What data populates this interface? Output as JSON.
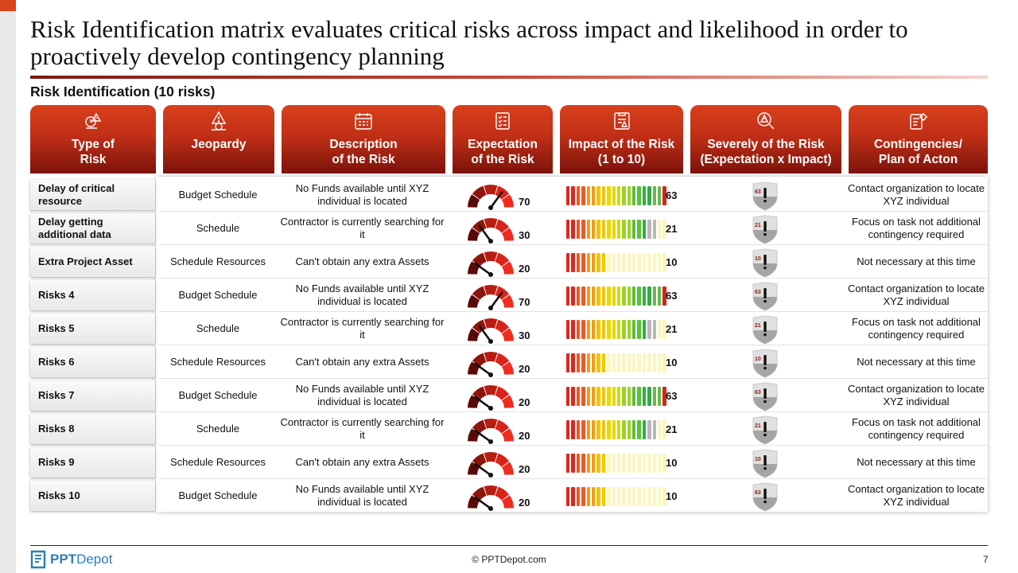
{
  "slide": {
    "title": "Risk Identification matrix evaluates critical risks across impact and likelihood in order to proactively develop contingency planning",
    "subtitle": "Risk Identification (10 risks)"
  },
  "columns": [
    {
      "label": "Type of\nRisk",
      "icon": "risk-analysis-icon"
    },
    {
      "label": "Jeopardy",
      "icon": "warning-money-icon"
    },
    {
      "label": "Description\nof the Risk",
      "icon": "calendar-icon"
    },
    {
      "label": "Expectation\nof the Risk",
      "icon": "checklist-icon"
    },
    {
      "label": "Impact of the Risk\n(1 to 10)",
      "icon": "report-warning-icon"
    },
    {
      "label": "Severely of the Risk\n(Expectation x Impact)",
      "icon": "magnifier-warning-icon"
    },
    {
      "label": "Contingencies/\nPlan of Acton",
      "icon": "plan-gear-icon"
    }
  ],
  "rows": [
    {
      "type": "Delay of critical resource",
      "jeopardy": "Budget Schedule",
      "description": "No Funds available until XYZ individual is located",
      "expectation": 70,
      "impact_label": "63",
      "impact_fill": 10,
      "severity": "63",
      "contingency": "Contact organization to locate XYZ individual"
    },
    {
      "type": "Delay getting additional data",
      "jeopardy": "Schedule",
      "description": "Contractor is currently searching for it",
      "expectation": 30,
      "impact_label": "21",
      "impact_fill": 8,
      "severity": "21",
      "contingency": "Focus on task not additional contingency required"
    },
    {
      "type": "Extra Project Asset",
      "jeopardy": "Schedule Resources",
      "description": "Can't obtain any extra Assets",
      "expectation": 20,
      "impact_label": "10",
      "impact_fill": 4,
      "severity": "10",
      "contingency": "Not necessary at this time"
    },
    {
      "type": "Risks 4",
      "jeopardy": "Budget Schedule",
      "description": "No Funds available until XYZ individual is located",
      "expectation": 70,
      "impact_label": "63",
      "impact_fill": 10,
      "severity": "63",
      "contingency": "Contact organization to locate XYZ individual"
    },
    {
      "type": "Risks 5",
      "jeopardy": "Schedule",
      "description": "Contractor is currently searching for it",
      "expectation": 30,
      "impact_label": "21",
      "impact_fill": 8,
      "severity": "21",
      "contingency": "Focus on task not additional contingency required"
    },
    {
      "type": "Risks 6",
      "jeopardy": "Schedule Resources",
      "description": "Can't obtain any extra Assets",
      "expectation": 20,
      "impact_label": "10",
      "impact_fill": 4,
      "severity": "10",
      "contingency": "Not necessary at this time"
    },
    {
      "type": "Risks 7",
      "jeopardy": "Budget Schedule",
      "description": "No Funds available until XYZ individual is located",
      "expectation": 20,
      "impact_label": "63",
      "impact_fill": 10,
      "severity": "63",
      "contingency": "Contact organization to locate XYZ individual"
    },
    {
      "type": "Risks 8",
      "jeopardy": "Schedule",
      "description": "Contractor is currently searching for it",
      "expectation": 20,
      "impact_label": "21",
      "impact_fill": 8,
      "severity": "21",
      "contingency": "Focus on task not additional contingency required"
    },
    {
      "type": "Risks 9",
      "jeopardy": "Schedule Resources",
      "description": "Can't obtain any extra Assets",
      "expectation": 20,
      "impact_label": "10",
      "impact_fill": 4,
      "severity": "10",
      "contingency": "Not necessary at this time"
    },
    {
      "type": "Risks 10",
      "jeopardy": "Budget Schedule",
      "description": "No Funds available until XYZ individual is located",
      "expectation": 20,
      "impact_label": "10",
      "impact_fill": 4,
      "severity": "63",
      "contingency": "Contact organization to locate XYZ individual"
    }
  ],
  "bar_colors": [
    "#e1261c",
    "#ee5a24",
    "#f39c12",
    "#f5c400",
    "#e6d800",
    "#c9dc00",
    "#9ed22a",
    "#5cc03a",
    "#2fad45",
    "#6ab84a",
    "#d4241b",
    "#b8b8b8"
  ],
  "bar_empty_color": "#fbf6c0",
  "footer": {
    "brand_bold": "PPT",
    "brand_rest": "Depot",
    "copyright": "© PPTDepot.com",
    "page": "7"
  }
}
